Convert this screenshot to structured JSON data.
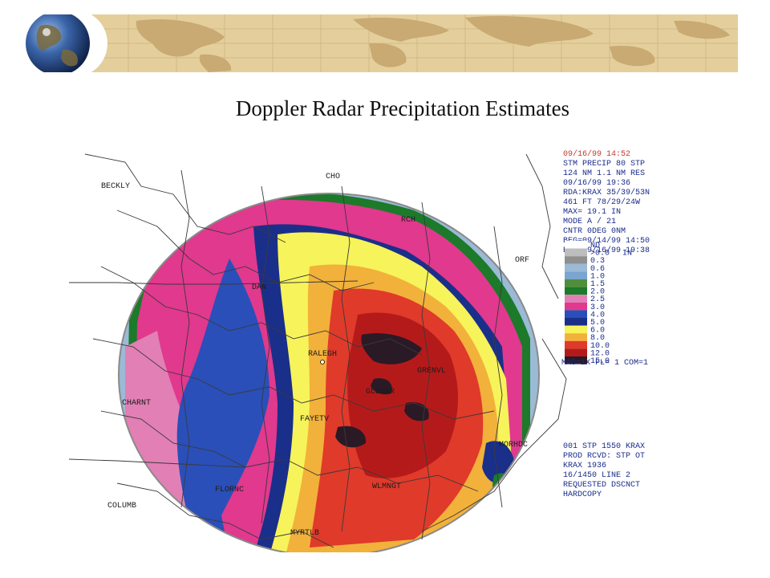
{
  "slide": {
    "title": "Doppler Radar Precipitation Estimates"
  },
  "colors": {
    "banner": "#e4cf9c",
    "banner_map": "#c8aa72",
    "globe_ocean": "#2b4f8c",
    "header_text": "#c0392b",
    "info_text": "#1a2b8a",
    "city_text": "#1c1c1c"
  },
  "radar": {
    "header_lines": [
      "09/16/99 14:52",
      "STM PRECIP  80 STP",
      " 124 NM 1.1 NM RES",
      "09/16/99 19:36",
      "RDA:KRAX 35/39/53N",
      " 461 FT  78/29/24W",
      "MAX= 19.1 IN",
      "MODE A /    21",
      "CNTR   0DEG   0NM",
      "BEG=09/14/99 14:50",
      "END=09/16/99 19:38"
    ],
    "legend": {
      "unit": "IN",
      "entries": [
        {
          "label": "ND",
          "color": "#ffffff"
        },
        {
          "label": ">0.0",
          "color": "#bdbdbd"
        },
        {
          "label": "0.3",
          "color": "#8f8f8f"
        },
        {
          "label": "0.6",
          "color": "#9bbad6"
        },
        {
          "label": "1.0",
          "color": "#7aa5d0"
        },
        {
          "label": "1.5",
          "color": "#4f8f3c"
        },
        {
          "label": "2.0",
          "color": "#1c7a2a"
        },
        {
          "label": "2.5",
          "color": "#e27fb5"
        },
        {
          "label": "3.0",
          "color": "#e0398e"
        },
        {
          "label": "4.0",
          "color": "#2a4fb8"
        },
        {
          "label": "5.0",
          "color": "#1a2f8a"
        },
        {
          "label": "6.0",
          "color": "#f7f35a"
        },
        {
          "label": "8.0",
          "color": "#f2b13a"
        },
        {
          "label": "10.0",
          "color": "#e03a2a"
        },
        {
          "label": "12.0",
          "color": "#b51a1a"
        },
        {
          "label": "15.0",
          "color": "#2a1a26"
        }
      ]
    },
    "footer_line": "MAG=1X FL= 1 COM=1",
    "product_lines": [
      "001 STP 1550  KRAX",
      "PROD RCVD: STP  OT",
      "KRAX 1936",
      "16/1450 LINE 2",
      "REQUESTED DSCNCT",
      "HARDCOPY"
    ],
    "cities": [
      "BECKLY",
      "CHO",
      "RCH",
      "ORF",
      "DAN",
      "RALEGH",
      "GRENVL",
      "GLDSBR",
      "FAYETV",
      "CHARNT",
      "MORHDC",
      "FLORNC",
      "WLMNGT",
      "COLUMB",
      "MYRTLB"
    ]
  }
}
